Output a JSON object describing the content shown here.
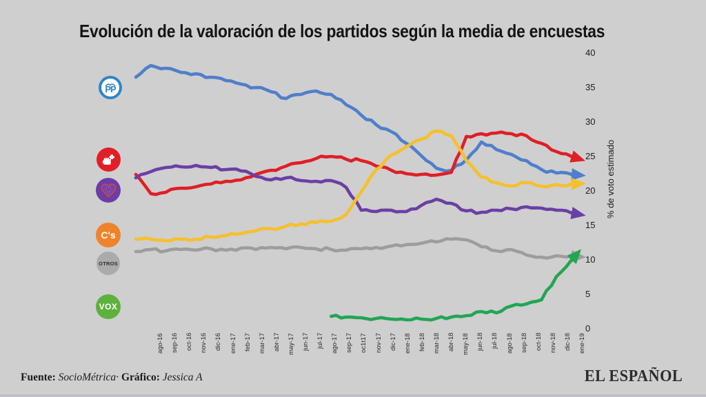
{
  "chart_data": {
    "type": "line",
    "title": "Evolución de la valoración de los partidos según la media de encuestas",
    "ylabel": "% de voto estimado",
    "ylim": [
      0,
      40
    ],
    "yticks": [
      40,
      35,
      30,
      25,
      20,
      15,
      10,
      5,
      0
    ],
    "grid": false,
    "legend_position": "left-icons",
    "line_end_marker": "arrowhead",
    "categories": [
      "ago-16",
      "sep-16",
      "oct-16",
      "nov-16",
      "dic-16",
      "ene-17",
      "feb-17",
      "mar-17",
      "abr-17",
      "may-17",
      "jun-17",
      "jul-17",
      "ago-17",
      "sep-17",
      "oc1t17",
      "nov-17",
      "dic-17",
      "ene-18",
      "feb-18",
      "mar-18",
      "abr-18",
      "may-18",
      "jun-18",
      "jul-18",
      "ago-18",
      "sep-18",
      "oct-18",
      "nov-18",
      "dic-18",
      "ene-19"
    ],
    "series": [
      {
        "name": "PP",
        "color": "#4f7fca",
        "values": [
          36.5,
          38.2,
          37.8,
          37.2,
          37.0,
          36.5,
          36.0,
          35.5,
          35.0,
          34.4,
          33.4,
          34.0,
          34.5,
          34.0,
          32.5,
          31.0,
          29.6,
          28.6,
          26.9,
          25.1,
          23.3,
          23.0,
          24.5,
          27.1,
          26.0,
          25.3,
          24.4,
          23.1,
          22.6,
          22.4
        ]
      },
      {
        "name": "PSOE",
        "color": "#df1f26",
        "values": [
          22.4,
          19.6,
          19.8,
          20.4,
          20.6,
          21.0,
          21.4,
          21.6,
          22.4,
          23.0,
          23.6,
          24.1,
          24.7,
          25.0,
          24.6,
          24.4,
          23.6,
          23.0,
          22.5,
          22.4,
          22.3,
          22.7,
          27.9,
          28.3,
          28.4,
          28.3,
          28.0,
          26.9,
          25.7,
          25.0
        ]
      },
      {
        "name": "Unidos Podemos",
        "color": "#6b3fa5",
        "values": [
          21.9,
          22.8,
          23.4,
          23.5,
          23.7,
          23.4,
          23.1,
          22.9,
          22.1,
          21.6,
          21.9,
          21.5,
          21.4,
          21.5,
          20.5,
          17.2,
          17.0,
          17.2,
          17.0,
          17.9,
          18.8,
          18.2,
          17.1,
          16.9,
          17.2,
          17.4,
          17.7,
          17.5,
          17.2,
          16.8
        ]
      },
      {
        "name": "Ciudadanos",
        "color": "#f5c02d",
        "values": [
          13.0,
          13.0,
          12.8,
          13.0,
          13.0,
          13.3,
          13.5,
          13.8,
          14.2,
          14.5,
          14.9,
          15.2,
          15.4,
          15.6,
          16.6,
          19.9,
          23.1,
          25.2,
          26.4,
          27.5,
          28.7,
          28.0,
          24.4,
          22.0,
          21.2,
          20.7,
          21.2,
          20.7,
          20.9,
          21.0
        ]
      },
      {
        "name": "Otros",
        "color": "#9d9d9d",
        "values": [
          11.2,
          11.5,
          11.3,
          11.5,
          11.4,
          11.6,
          11.4,
          11.7,
          11.5,
          11.8,
          11.6,
          11.8,
          11.6,
          11.5,
          11.4,
          11.6,
          11.8,
          12.0,
          12.2,
          12.4,
          12.6,
          13.0,
          12.9,
          11.9,
          11.3,
          11.5,
          10.7,
          10.4,
          10.6,
          10.5
        ]
      },
      {
        "name": "VOX",
        "color": "#21a653",
        "values": [
          null,
          null,
          null,
          null,
          null,
          null,
          null,
          null,
          null,
          null,
          null,
          null,
          null,
          1.8,
          1.7,
          1.6,
          1.5,
          1.4,
          1.3,
          1.4,
          1.5,
          1.7,
          1.9,
          2.5,
          2.3,
          3.3,
          3.6,
          4.2,
          7.6,
          10.0
        ]
      }
    ],
    "icons": [
      {
        "party": "PP",
        "label": "PP",
        "bg": "#2e86c8",
        "fg": "#2e86c8"
      },
      {
        "party": "PSOE",
        "label": "",
        "bg": "#e11f26",
        "fg": "#ffffff"
      },
      {
        "party": "Podemos",
        "label": "",
        "bg": "#6a3da8",
        "fg": "#ffffff"
      },
      {
        "party": "Ciudadanos",
        "label": "C's",
        "bg": "#ef8329",
        "fg": "#ffffff"
      },
      {
        "party": "Otros",
        "label": "OTROS",
        "bg": "#ababab",
        "fg": "#2d2d2d"
      },
      {
        "party": "VOX",
        "label": "VOX",
        "bg": "#5db13c",
        "fg": "#ffffff"
      }
    ]
  },
  "footer": {
    "fuente_label": "Fuente:",
    "fuente_value": "SocioMétrica·",
    "grafico_label": "Gráfico:",
    "grafico_value": "Jessica A",
    "logo": "EL ESPAÑOL"
  }
}
